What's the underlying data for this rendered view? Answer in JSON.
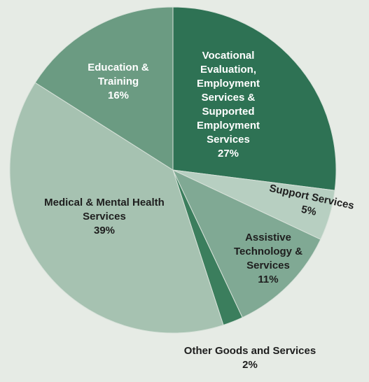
{
  "chart_data": {
    "type": "pie",
    "categories": [
      "Vocational Evaluation, Employment Services & Supported Employment Services",
      "Support Services",
      "Assistive Technology & Services",
      "Other Goods and Services",
      "Medical & Mental Health Services",
      "Education & Training"
    ],
    "values": [
      27,
      5,
      11,
      2,
      39,
      16
    ],
    "value_labels": [
      "27%",
      "5%",
      "11%",
      "2%",
      "39%",
      "16%"
    ],
    "colors": [
      "#2e7254",
      "#b7cfc1",
      "#80a994",
      "#3b7e5d",
      "#a6c2b1",
      "#6b9b82"
    ]
  }
}
